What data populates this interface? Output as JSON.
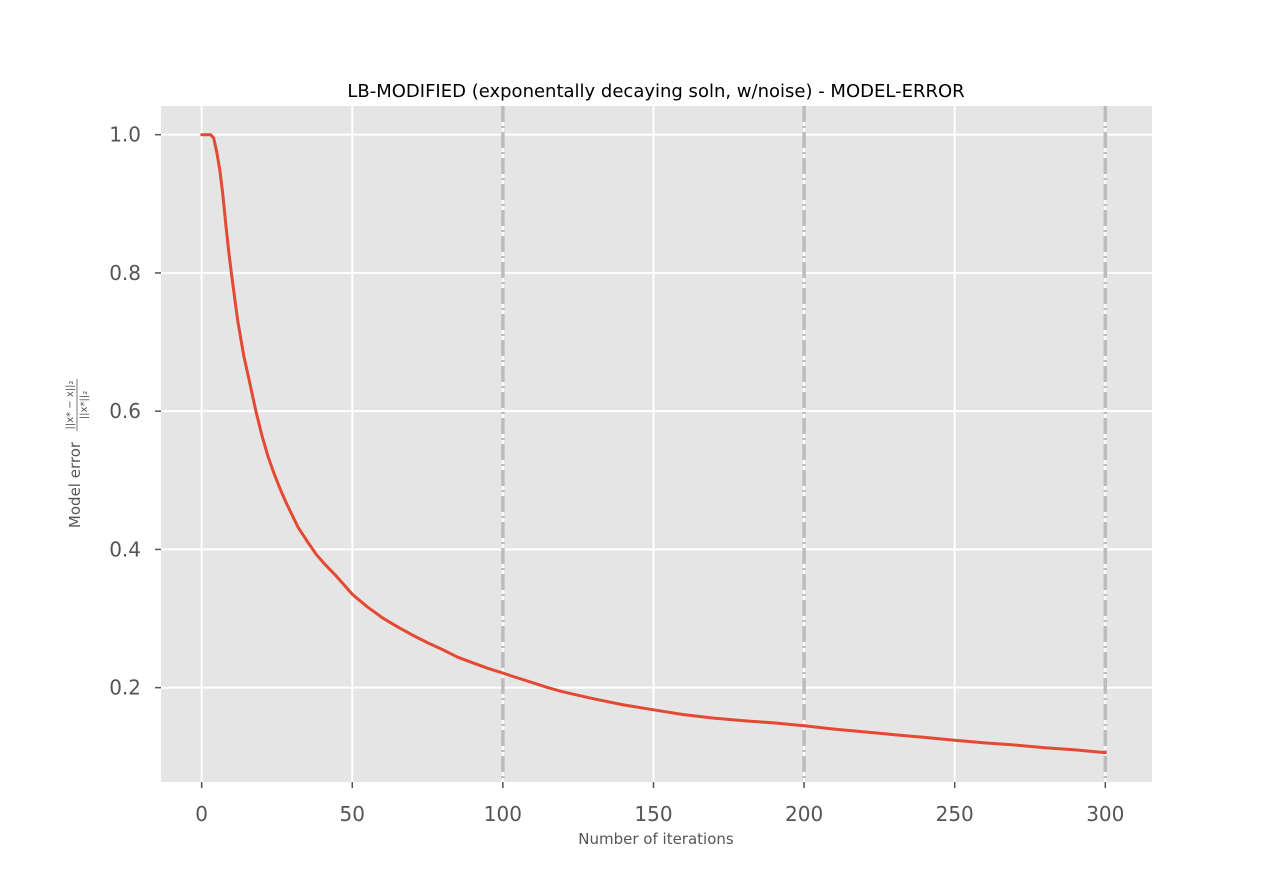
{
  "chart_data": {
    "type": "line",
    "title": "LB-MODIFIED (exponentally decaying soln, w/noise) - MODEL-ERROR",
    "xlabel": "Number of iterations",
    "ylabel_prefix": "Model error",
    "ylabel_numerator": "||x* − x||₂",
    "ylabel_denominator": "||x*||₂",
    "xlim": [
      -13.5,
      315.5
    ],
    "ylim": [
      0.0635,
      1.0415
    ],
    "xticks": [
      0,
      50,
      100,
      150,
      200,
      250,
      300
    ],
    "xtick_labels": [
      "0",
      "50",
      "100",
      "150",
      "200",
      "250",
      "300"
    ],
    "yticks": [
      0.2,
      0.4,
      0.6,
      0.8,
      1.0
    ],
    "ytick_labels": [
      "0.2",
      "0.4",
      "0.6",
      "0.8",
      "1.0"
    ],
    "grid": true,
    "vlines": [
      100,
      200,
      300
    ],
    "vline_color": "#bcbcbc",
    "background_color": "#e5e5e5",
    "series": [
      {
        "color": "#e24a33",
        "x": [
          0,
          3,
          4,
          5,
          6,
          7,
          8,
          9,
          10,
          12,
          14,
          16,
          18,
          20,
          22,
          24,
          26,
          28,
          30,
          32,
          35,
          38,
          41,
          45,
          50,
          55,
          60,
          65,
          70,
          75,
          80,
          85,
          90,
          95,
          100,
          105,
          110,
          115,
          120,
          125,
          130,
          140,
          150,
          160,
          170,
          180,
          190,
          200,
          210,
          220,
          230,
          240,
          250,
          260,
          270,
          280,
          290,
          300
        ],
        "y": [
          1.0,
          1.0,
          0.995,
          0.975,
          0.95,
          0.915,
          0.87,
          0.83,
          0.795,
          0.73,
          0.68,
          0.64,
          0.6,
          0.565,
          0.535,
          0.51,
          0.488,
          0.468,
          0.45,
          0.432,
          0.412,
          0.393,
          0.378,
          0.36,
          0.335,
          0.317,
          0.301,
          0.288,
          0.276,
          0.265,
          0.255,
          0.244,
          0.236,
          0.228,
          0.221,
          0.214,
          0.207,
          0.2,
          0.194,
          0.189,
          0.184,
          0.175,
          0.168,
          0.161,
          0.156,
          0.152,
          0.149,
          0.145,
          0.14,
          0.136,
          0.132,
          0.128,
          0.124,
          0.12,
          0.117,
          0.113,
          0.11,
          0.106
        ]
      }
    ]
  }
}
